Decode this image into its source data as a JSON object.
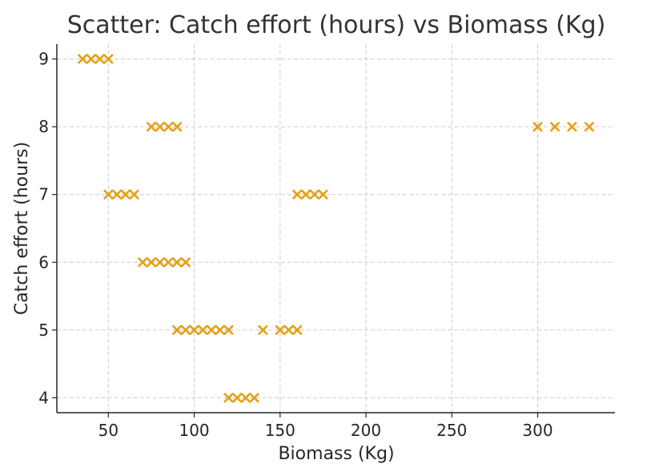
{
  "chart_data": {
    "type": "scatter",
    "title": "Scatter: Catch effort (hours) vs Biomass (Kg)",
    "xlabel": "Biomass (Kg)",
    "ylabel": "Catch effort (hours)",
    "xlim": [
      20,
      345
    ],
    "ylim": [
      3.78,
      9.22
    ],
    "xticks": [
      50,
      100,
      150,
      200,
      250,
      300
    ],
    "yticks": [
      4,
      5,
      6,
      7,
      8,
      9
    ],
    "grid": true,
    "marker": "x",
    "color": "#E3A21A",
    "points": [
      {
        "x": 35,
        "y": 9
      },
      {
        "x": 40,
        "y": 9
      },
      {
        "x": 45,
        "y": 9
      },
      {
        "x": 50,
        "y": 9
      },
      {
        "x": 75,
        "y": 8
      },
      {
        "x": 80,
        "y": 8
      },
      {
        "x": 85,
        "y": 8
      },
      {
        "x": 90,
        "y": 8
      },
      {
        "x": 300,
        "y": 8
      },
      {
        "x": 310,
        "y": 8
      },
      {
        "x": 320,
        "y": 8
      },
      {
        "x": 330,
        "y": 8
      },
      {
        "x": 50,
        "y": 7
      },
      {
        "x": 55,
        "y": 7
      },
      {
        "x": 60,
        "y": 7
      },
      {
        "x": 65,
        "y": 7
      },
      {
        "x": 160,
        "y": 7
      },
      {
        "x": 165,
        "y": 7
      },
      {
        "x": 170,
        "y": 7
      },
      {
        "x": 175,
        "y": 7
      },
      {
        "x": 70,
        "y": 6
      },
      {
        "x": 75,
        "y": 6
      },
      {
        "x": 80,
        "y": 6
      },
      {
        "x": 85,
        "y": 6
      },
      {
        "x": 90,
        "y": 6
      },
      {
        "x": 95,
        "y": 6
      },
      {
        "x": 90,
        "y": 5
      },
      {
        "x": 95,
        "y": 5
      },
      {
        "x": 100,
        "y": 5
      },
      {
        "x": 105,
        "y": 5
      },
      {
        "x": 110,
        "y": 5
      },
      {
        "x": 115,
        "y": 5
      },
      {
        "x": 120,
        "y": 5
      },
      {
        "x": 140,
        "y": 5
      },
      {
        "x": 150,
        "y": 5
      },
      {
        "x": 155,
        "y": 5
      },
      {
        "x": 160,
        "y": 5
      },
      {
        "x": 120,
        "y": 4
      },
      {
        "x": 125,
        "y": 4
      },
      {
        "x": 130,
        "y": 4
      },
      {
        "x": 135,
        "y": 4
      }
    ]
  }
}
